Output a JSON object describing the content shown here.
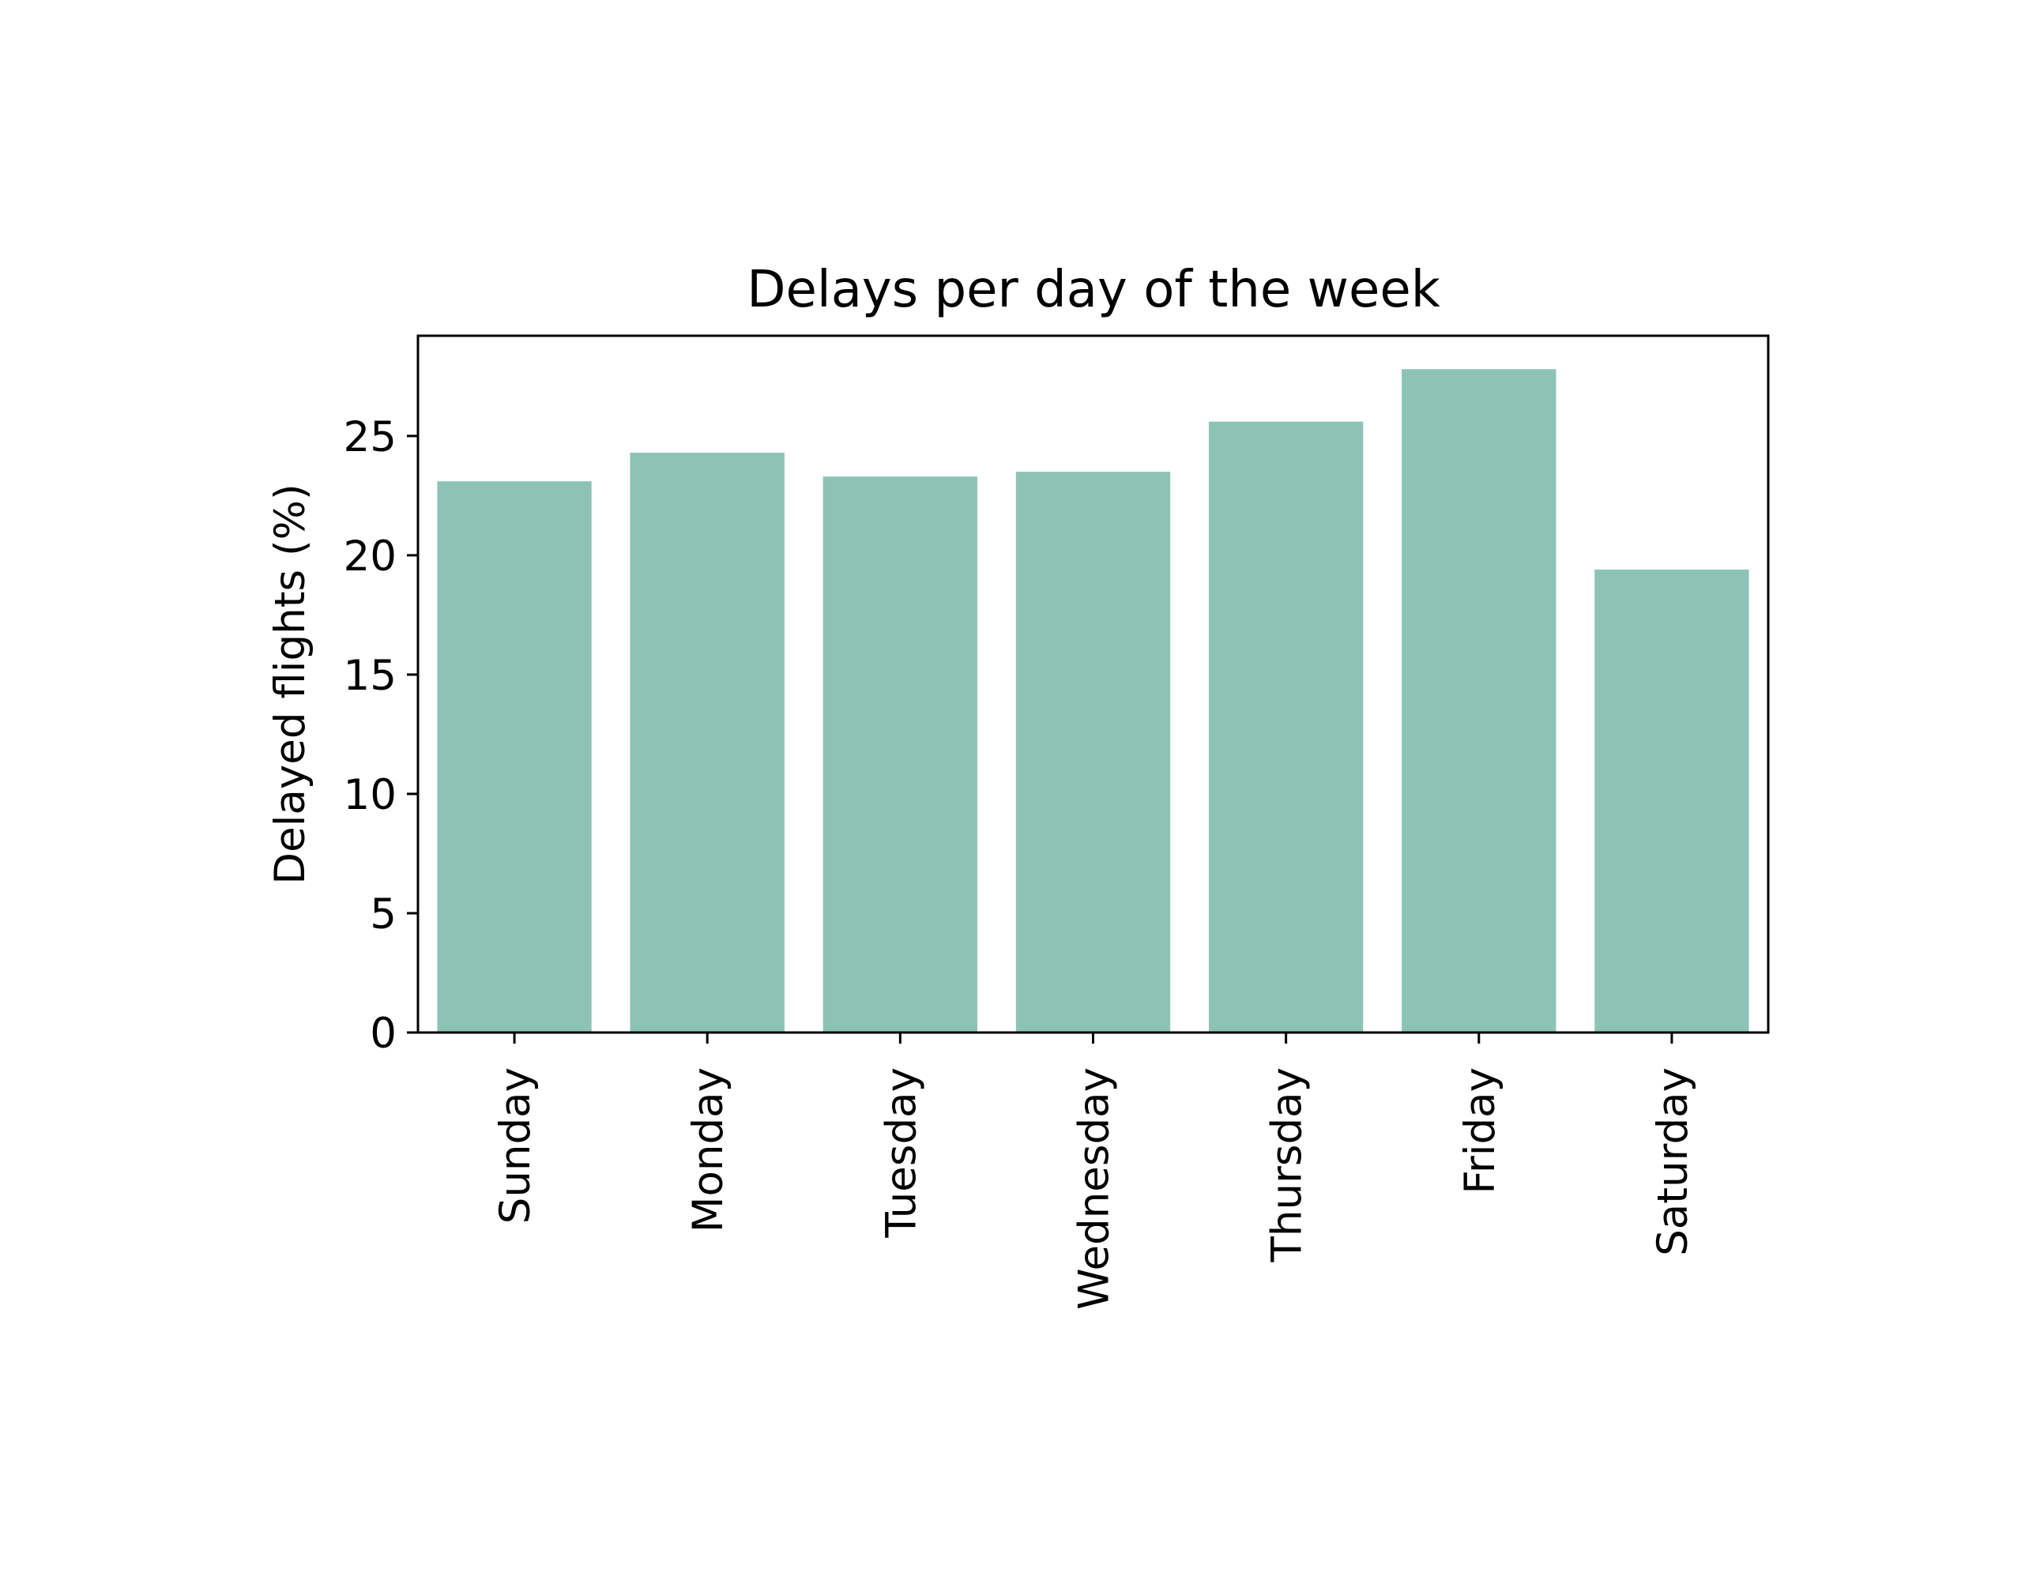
{
  "chart_data": {
    "type": "bar",
    "title": "Delays per day of the week",
    "xlabel": "",
    "ylabel": "Delayed flights (%)",
    "categories": [
      "Sunday",
      "Monday",
      "Tuesday",
      "Wednesday",
      "Thursday",
      "Friday",
      "Saturday"
    ],
    "values": [
      23.1,
      24.3,
      23.3,
      23.5,
      25.6,
      27.8,
      19.4
    ],
    "ylim": [
      0,
      29.2
    ],
    "yticks": [
      0,
      5,
      10,
      15,
      20,
      25
    ],
    "grid": false,
    "bar_color": "#8cc3b5"
  }
}
